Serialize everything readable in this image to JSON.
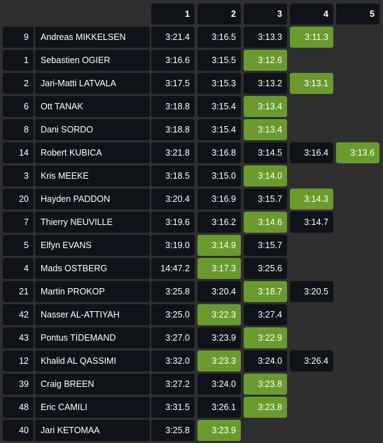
{
  "colors": {
    "background": "#2f2f2f",
    "cell": "#0f1319",
    "best": "#6a9a2e",
    "text": "#ffffff"
  },
  "headers": [
    "1",
    "2",
    "3",
    "4",
    "5"
  ],
  "rows": [
    {
      "no": "9",
      "name": "Andreas MIKKELSEN",
      "times": [
        "3:21.4",
        "3:16.5",
        "3:13.3",
        "3:11.3",
        ""
      ],
      "best": 3
    },
    {
      "no": "1",
      "name": "Sebastien OGIER",
      "times": [
        "3:16.6",
        "3:15.5",
        "3:12.6",
        "",
        ""
      ],
      "best": 2
    },
    {
      "no": "2",
      "name": "Jari-Matti LATVALA",
      "times": [
        "3:17.5",
        "3:15.3",
        "3:13.2",
        "3:13.1",
        ""
      ],
      "best": 3
    },
    {
      "no": "6",
      "name": "Ott TANAK",
      "times": [
        "3:18.8",
        "3:15.4",
        "3:13.4",
        "",
        ""
      ],
      "best": 2
    },
    {
      "no": "8",
      "name": "Dani SORDO",
      "times": [
        "3:18.8",
        "3:15.4",
        "3:13.4",
        "",
        ""
      ],
      "best": 2
    },
    {
      "no": "14",
      "name": "Robert KUBICA",
      "times": [
        "3:21.8",
        "3:16.8",
        "3:14.5",
        "3:16.4",
        "3:13.6"
      ],
      "best": 4
    },
    {
      "no": "3",
      "name": "Kris MEEKE",
      "times": [
        "3:18.5",
        "3:15.0",
        "3:14.0",
        "",
        ""
      ],
      "best": 2
    },
    {
      "no": "20",
      "name": "Hayden PADDON",
      "times": [
        "3:20.4",
        "3:16.9",
        "3:15.7",
        "3:14.3",
        ""
      ],
      "best": 3
    },
    {
      "no": "7",
      "name": "Thierry NEUVILLE",
      "times": [
        "3:19.6",
        "3:16.2",
        "3:14.6",
        "3:14.7",
        ""
      ],
      "best": 2
    },
    {
      "no": "5",
      "name": "Elfyn EVANS",
      "times": [
        "3:19.0",
        "3:14.9",
        "3:15.7",
        "",
        ""
      ],
      "best": 1
    },
    {
      "no": "4",
      "name": "Mads OSTBERG",
      "times": [
        "14:47.2",
        "3:17.3",
        "3:25.6",
        "",
        ""
      ],
      "best": 1
    },
    {
      "no": "21",
      "name": "Martin PROKOP",
      "times": [
        "3:25.8",
        "3:20.4",
        "3:18.7",
        "3:20.5",
        ""
      ],
      "best": 2
    },
    {
      "no": "42",
      "name": "Nasser AL-ATTIYAH",
      "times": [
        "3:25.0",
        "3:22.3",
        "3:27.4",
        "",
        ""
      ],
      "best": 1
    },
    {
      "no": "43",
      "name": "Pontus TIDEMAND",
      "times": [
        "3:27.0",
        "3:23.9",
        "3:22.9",
        "",
        ""
      ],
      "best": 2
    },
    {
      "no": "12",
      "name": "Khalid AL QASSIMI",
      "times": [
        "3:32.0",
        "3:23.3",
        "3:24.0",
        "3:26.4",
        ""
      ],
      "best": 1
    },
    {
      "no": "39",
      "name": "Craig BREEN",
      "times": [
        "3:27.2",
        "3:24.0",
        "3:23.8",
        "",
        ""
      ],
      "best": 2
    },
    {
      "no": "48",
      "name": "Eric CAMILI",
      "times": [
        "3:31.5",
        "3:26.1",
        "3:23.8",
        "",
        ""
      ],
      "best": 2
    },
    {
      "no": "40",
      "name": "Jari KETOMAA",
      "times": [
        "3:25.8",
        "3:23.9",
        "",
        "",
        ""
      ],
      "best": 1
    }
  ]
}
